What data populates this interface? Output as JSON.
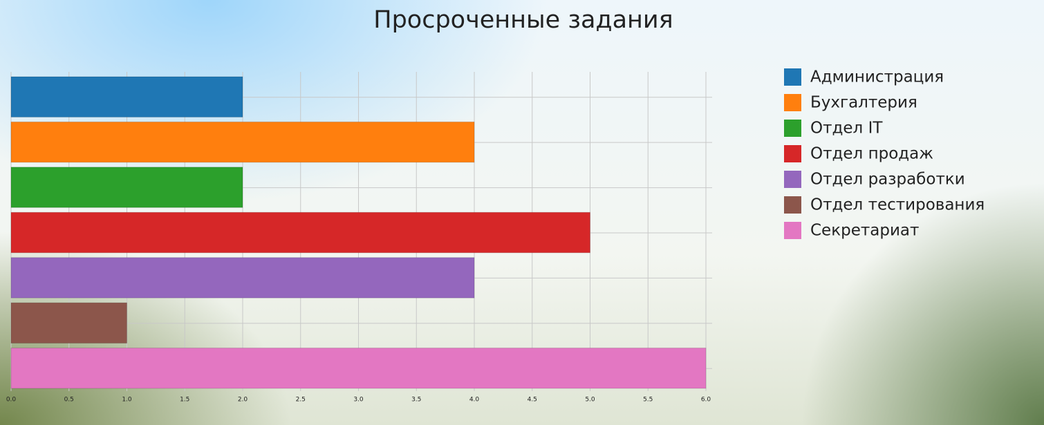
{
  "chart_data": {
    "type": "hbar",
    "title": "Просроченные задания",
    "categories": [
      "Администрация",
      "Бухгалтерия",
      "Отдел IT",
      "Отдел продаж",
      "Отдел разработки",
      "Отдел тестирования",
      "Секретариат"
    ],
    "values": [
      2,
      4,
      2,
      5,
      4,
      1,
      6
    ],
    "colors": [
      "#1f77b4",
      "#ff7f0e",
      "#2ca02c",
      "#d62728",
      "#9467bd",
      "#8c564b",
      "#e377c2"
    ],
    "xlim": [
      0,
      6
    ],
    "xticks": [
      {
        "value": 0,
        "label": "0.0"
      },
      0.5,
      {
        "value": 1,
        "label": "1.0"
      },
      1.5,
      {
        "value": 2,
        "label": "2.0"
      },
      2.5,
      {
        "value": 3,
        "label": "3.0"
      },
      3.5,
      {
        "value": 4,
        "label": "4.0"
      },
      4.5,
      {
        "value": 5,
        "label": "5.0"
      },
      5.5,
      {
        "value": 6,
        "label": "6.0"
      }
    ],
    "grid": true,
    "legend": "right"
  }
}
